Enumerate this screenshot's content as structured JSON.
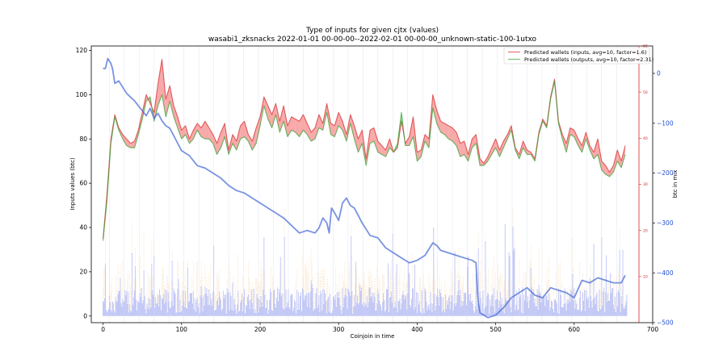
{
  "chart_data": {
    "type": "line",
    "title": "Type of inputs for given cjtx (values)",
    "subtitle": "wasabi1_zksnacks 2022-01-01 00-00-00--2022-02-01 00-00-00_unknown-static-100-1utxo",
    "xlabel": "Coinjoin in time",
    "ylabel": "Inputs values (btc)",
    "y2label": "btc in mix",
    "xlim": [
      -15,
      700
    ],
    "ylim": [
      -3,
      122
    ],
    "y2lim": [
      0,
      60
    ],
    "y3lim": [
      -500,
      55
    ],
    "x_ticks": [
      "0",
      "100",
      "200",
      "300",
      "400",
      "500",
      "600",
      "700"
    ],
    "y_ticks": [
      "0",
      "20",
      "40",
      "60",
      "80",
      "100",
      "120"
    ],
    "y2_ticks": [
      "10",
      "20",
      "30",
      "40",
      "50",
      "60"
    ],
    "y3_ticks": [
      "0",
      "−100",
      "−200",
      "−300",
      "−400",
      "−500"
    ],
    "legend_position": "top-right",
    "series": [
      {
        "name": "Predicted wallets (inputs, avg=10, factor=1.6)",
        "color": "#d62728",
        "axis": "left",
        "x": [
          0,
          5,
          10,
          15,
          20,
          25,
          30,
          35,
          40,
          45,
          50,
          55,
          60,
          65,
          70,
          75,
          80,
          85,
          90,
          95,
          100,
          105,
          110,
          115,
          120,
          125,
          130,
          135,
          140,
          145,
          150,
          155,
          160,
          165,
          170,
          175,
          180,
          185,
          190,
          195,
          200,
          205,
          210,
          215,
          220,
          225,
          230,
          235,
          240,
          245,
          250,
          255,
          260,
          265,
          270,
          275,
          280,
          285,
          290,
          295,
          300,
          305,
          310,
          315,
          320,
          325,
          330,
          335,
          340,
          345,
          350,
          355,
          360,
          365,
          370,
          375,
          380,
          385,
          390,
          395,
          400,
          405,
          410,
          415,
          420,
          425,
          430,
          435,
          440,
          445,
          450,
          455,
          460,
          465,
          470,
          475,
          480,
          485,
          490,
          495,
          500,
          505,
          510,
          515,
          520,
          525,
          530,
          535,
          540,
          545,
          550,
          555,
          560,
          565,
          570,
          575,
          580,
          585,
          590,
          595,
          600,
          605,
          610,
          615,
          620,
          625,
          630,
          635,
          640,
          645,
          650,
          655,
          660,
          665
        ],
        "values": [
          35,
          55,
          80,
          91,
          85,
          82,
          80,
          78,
          79,
          84,
          92,
          100,
          96,
          92,
          105,
          116,
          98,
          104,
          95,
          90,
          84,
          86,
          80,
          84,
          87,
          85,
          88,
          85,
          82,
          78,
          83,
          87,
          75,
          82,
          79,
          86,
          88,
          82,
          79,
          85,
          90,
          99,
          95,
          91,
          96,
          88,
          95,
          86,
          90,
          89,
          88,
          91,
          87,
          83,
          85,
          91,
          87,
          96,
          87,
          86,
          92,
          88,
          82,
          91,
          86,
          80,
          84,
          71,
          84,
          85,
          79,
          77,
          75,
          80,
          74,
          76,
          88,
          78,
          81,
          90,
          74,
          75,
          82,
          80,
          100,
          93,
          88,
          87,
          86,
          85,
          83,
          78,
          79,
          73,
          80,
          82,
          71,
          69,
          72,
          76,
          80,
          75,
          79,
          82,
          86,
          76,
          73,
          79,
          75,
          74,
          71,
          83,
          89,
          86,
          99,
          107,
          88,
          82,
          78,
          85,
          84,
          80,
          77,
          83,
          77,
          74,
          80,
          70,
          68,
          65,
          68,
          75,
          70,
          77
        ]
      },
      {
        "name": "Predicted wallets (outputs, avg=10, factor=2.31)",
        "color": "#2ca02c",
        "axis": "left",
        "x": [
          0,
          5,
          10,
          15,
          20,
          25,
          30,
          35,
          40,
          45,
          50,
          55,
          60,
          65,
          70,
          75,
          80,
          85,
          90,
          95,
          100,
          105,
          110,
          115,
          120,
          125,
          130,
          135,
          140,
          145,
          150,
          155,
          160,
          165,
          170,
          175,
          180,
          185,
          190,
          195,
          200,
          205,
          210,
          215,
          220,
          225,
          230,
          235,
          240,
          245,
          250,
          255,
          260,
          265,
          270,
          275,
          280,
          285,
          290,
          295,
          300,
          305,
          310,
          315,
          320,
          325,
          330,
          335,
          340,
          345,
          350,
          355,
          360,
          365,
          370,
          375,
          380,
          385,
          390,
          395,
          400,
          405,
          410,
          415,
          420,
          425,
          430,
          435,
          440,
          445,
          450,
          455,
          460,
          465,
          470,
          475,
          480,
          485,
          490,
          495,
          500,
          505,
          510,
          515,
          520,
          525,
          530,
          535,
          540,
          545,
          550,
          555,
          560,
          565,
          570,
          575,
          580,
          585,
          590,
          595,
          600,
          605,
          610,
          615,
          620,
          625,
          630,
          635,
          640,
          645,
          650,
          655,
          660,
          665
        ],
        "values": [
          34,
          52,
          78,
          90,
          84,
          80,
          77,
          76,
          76,
          82,
          89,
          97,
          99,
          88,
          95,
          100,
          90,
          97,
          90,
          85,
          80,
          82,
          78,
          80,
          84,
          81,
          80,
          80,
          78,
          73,
          76,
          81,
          73,
          78,
          75,
          80,
          81,
          79,
          75,
          78,
          86,
          95,
          89,
          85,
          91,
          83,
          88,
          81,
          84,
          83,
          81,
          84,
          82,
          79,
          80,
          85,
          84,
          92,
          82,
          81,
          86,
          84,
          79,
          87,
          80,
          74,
          78,
          68,
          78,
          79,
          74,
          73,
          72,
          76,
          74,
          78,
          92,
          77,
          77,
          81,
          70,
          72,
          79,
          76,
          94,
          87,
          83,
          82,
          80,
          79,
          77,
          72,
          73,
          70,
          76,
          78,
          68,
          68,
          70,
          73,
          76,
          72,
          76,
          80,
          84,
          75,
          71,
          76,
          73,
          73,
          70,
          82,
          88,
          85,
          98,
          106,
          87,
          80,
          74,
          82,
          81,
          77,
          74,
          80,
          75,
          71,
          73,
          66,
          64,
          63,
          65,
          70,
          67,
          73
        ]
      },
      {
        "name": "btc in mix",
        "color": "#4b6fd6",
        "axis": "far-right",
        "x": [
          0,
          3,
          6,
          10,
          12,
          15,
          20,
          30,
          40,
          50,
          55,
          60,
          65,
          70,
          75,
          80,
          85,
          90,
          95,
          100,
          110,
          120,
          130,
          140,
          150,
          160,
          170,
          180,
          190,
          200,
          210,
          220,
          230,
          240,
          250,
          260,
          270,
          275,
          280,
          285,
          288,
          291,
          295,
          300,
          305,
          310,
          315,
          320,
          325,
          330,
          340,
          350,
          360,
          370,
          380,
          390,
          400,
          410,
          420,
          425,
          430,
          440,
          450,
          460,
          470,
          475,
          477,
          478,
          480,
          490,
          500,
          510,
          520,
          530,
          540,
          550,
          560,
          570,
          580,
          590,
          600,
          610,
          620,
          630,
          640,
          650,
          660,
          665
        ],
        "values": [
          10,
          10,
          30,
          20,
          10,
          -20,
          -15,
          -40,
          -55,
          -75,
          -85,
          -70,
          -90,
          -80,
          -95,
          -105,
          -110,
          -125,
          -140,
          -155,
          -165,
          -185,
          -190,
          -200,
          -210,
          -225,
          -235,
          -240,
          -250,
          -260,
          -270,
          -280,
          -290,
          -305,
          -320,
          -315,
          -320,
          -310,
          -290,
          -300,
          -320,
          -270,
          -280,
          -295,
          -260,
          -250,
          -265,
          -270,
          -285,
          -300,
          -325,
          -330,
          -350,
          -360,
          -370,
          -380,
          -375,
          -365,
          -340,
          -345,
          -355,
          -360,
          -365,
          -370,
          -375,
          -380,
          -440,
          -460,
          -480,
          -490,
          -485,
          -470,
          -450,
          -440,
          -430,
          -445,
          -450,
          -430,
          -435,
          -440,
          -450,
          -415,
          -420,
          -410,
          -415,
          -420,
          -420,
          -405
        ]
      }
    ]
  }
}
